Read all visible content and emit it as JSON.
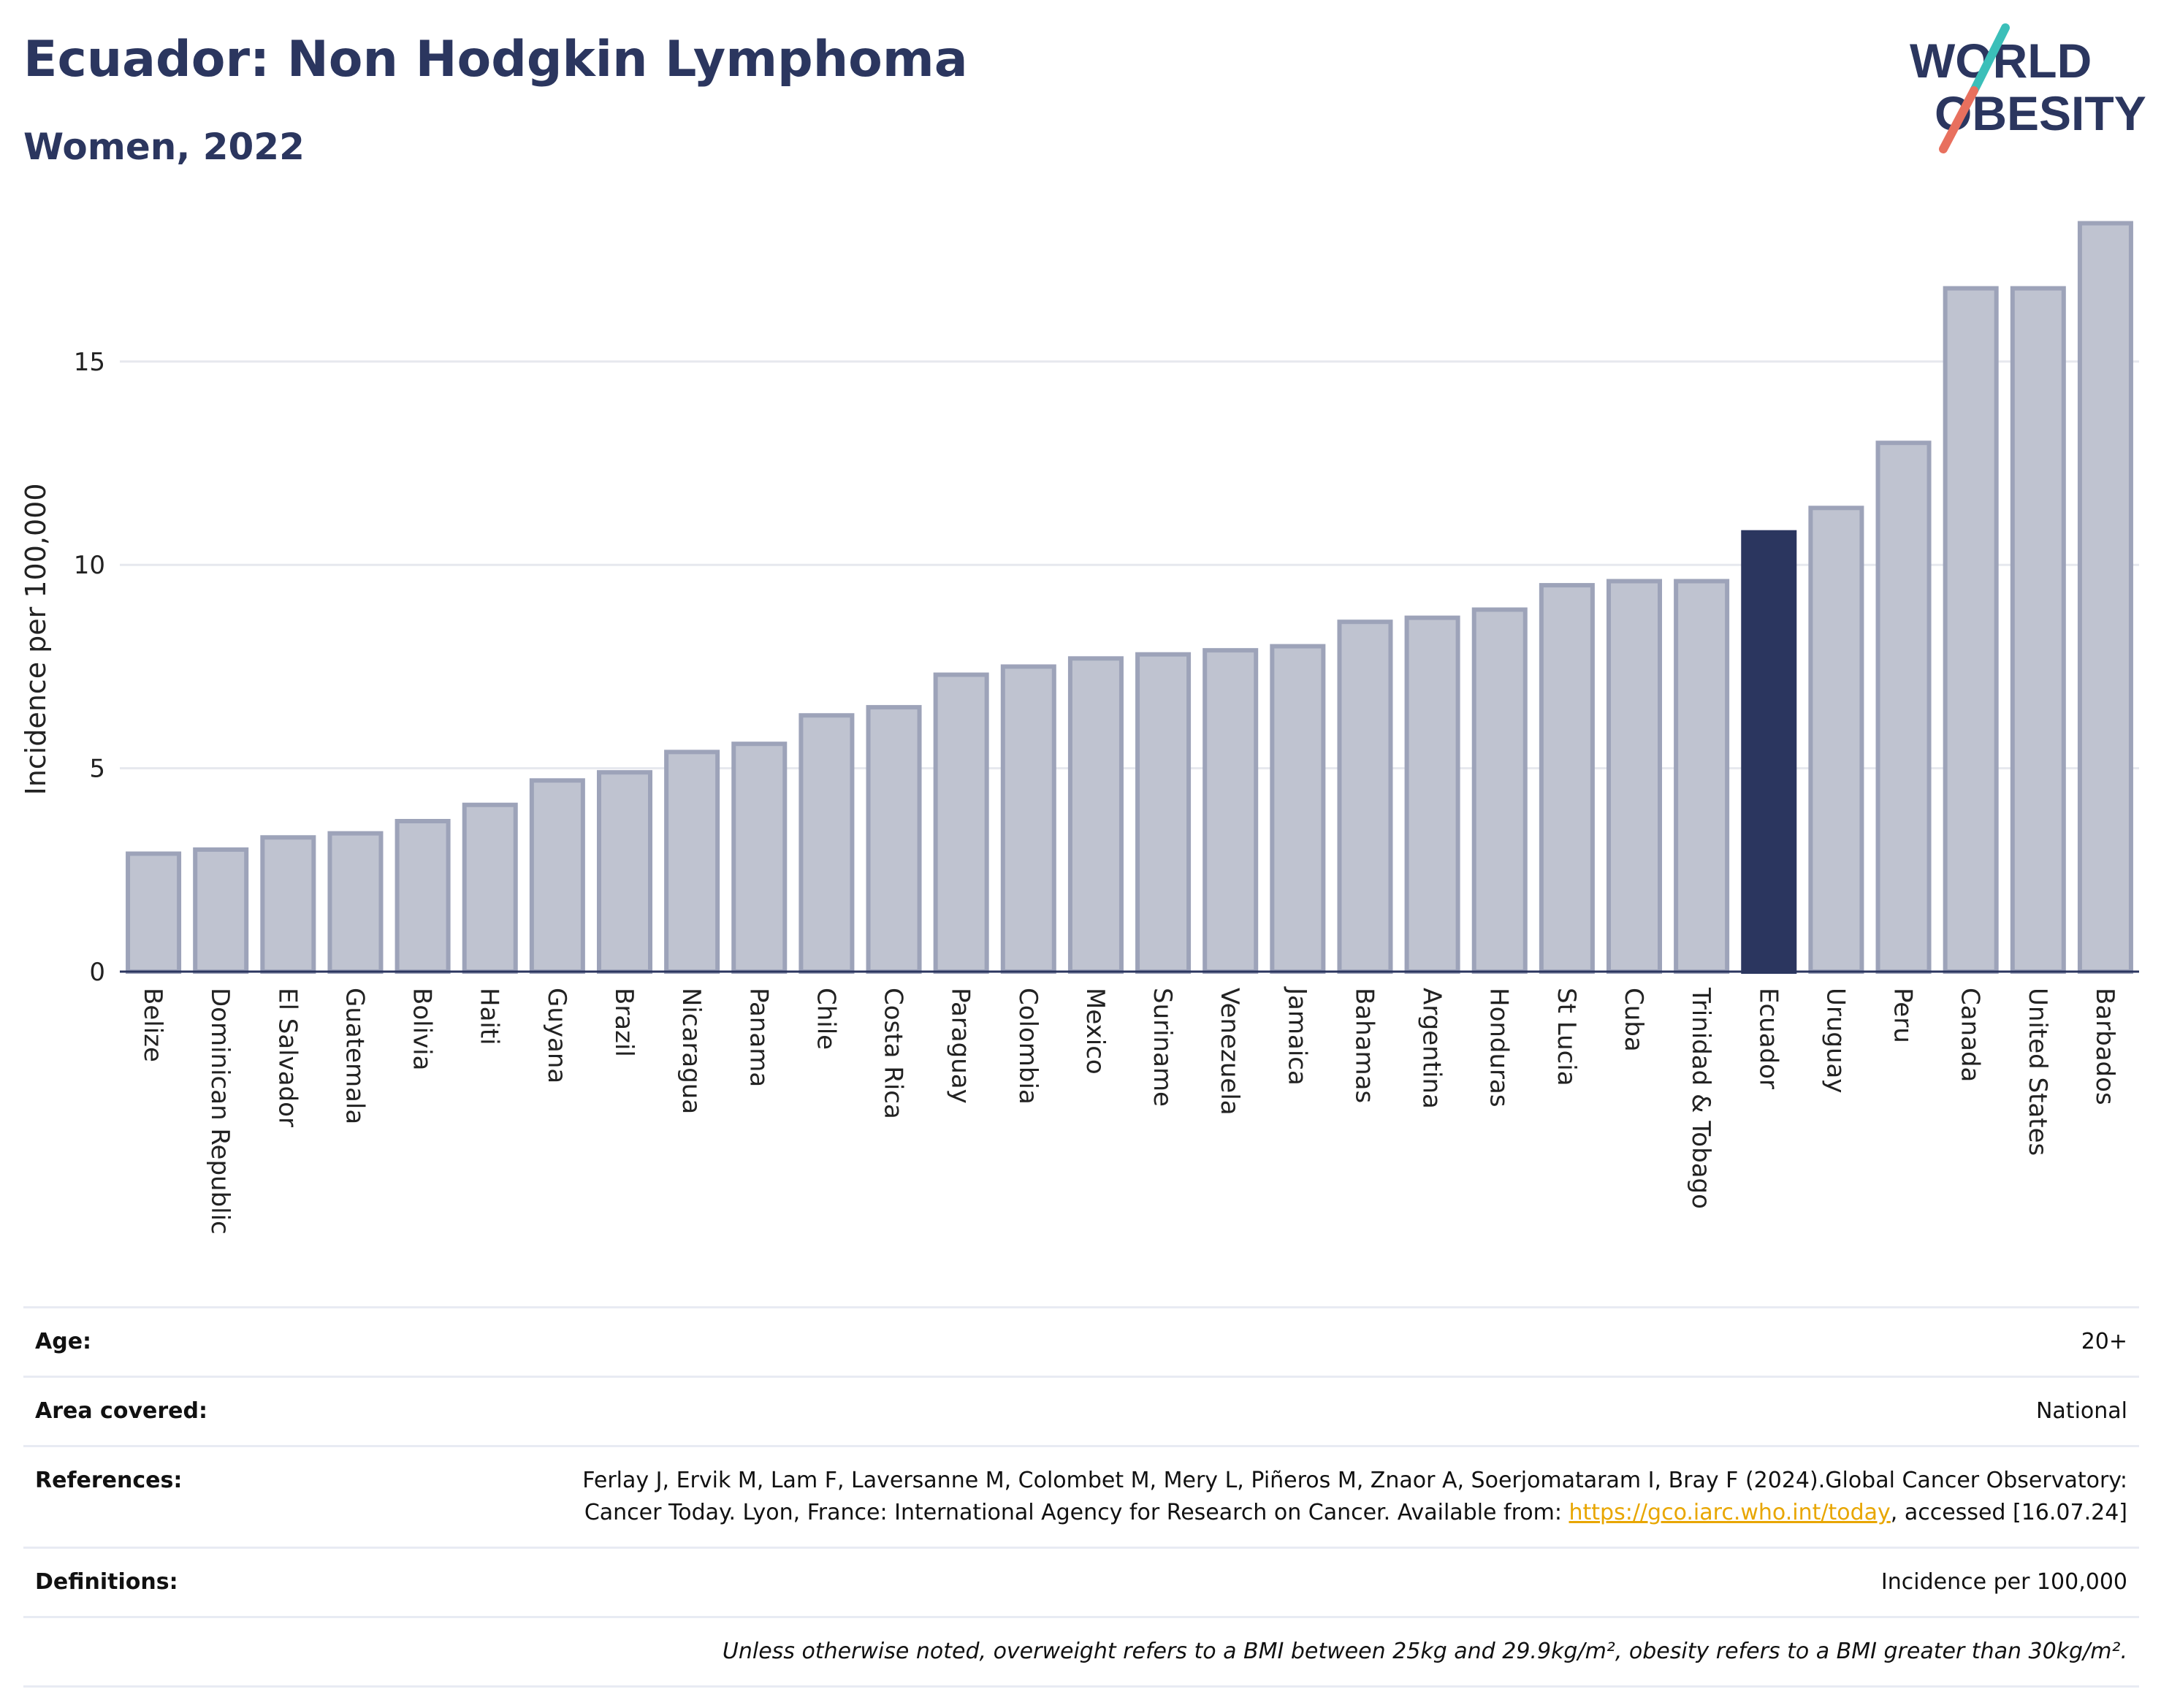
{
  "header": {
    "title": "Ecuador: Non Hodgkin Lymphoma",
    "subtitle": "Women, 2022"
  },
  "logo": {
    "line1": "WORLD",
    "line2": "OBESITY",
    "colors": {
      "text": "#2b365f",
      "slash_top": "#3bbfb9",
      "slash_bottom": "#e8705e"
    }
  },
  "colors": {
    "bar": "#bfc3d0",
    "bar_stroke": "#9da3b9",
    "highlight": "#2b365f",
    "grid": "#e6e8ee",
    "axis": "#2b365f"
  },
  "chart_data": {
    "type": "bar",
    "ylabel": "Incidence per 100,000",
    "ylim": [
      0,
      18.5
    ],
    "yticks": [
      0,
      5,
      10,
      15
    ],
    "grid": true,
    "highlight": "Ecuador",
    "categories": [
      "Belize",
      "Dominican Republic",
      "El Salvador",
      "Guatemala",
      "Bolivia",
      "Haiti",
      "Guyana",
      "Brazil",
      "Nicaragua",
      "Panama",
      "Chile",
      "Costa Rica",
      "Paraguay",
      "Colombia",
      "Mexico",
      "Suriname",
      "Venezuela",
      "Jamaica",
      "Bahamas",
      "Argentina",
      "Honduras",
      "St Lucia",
      "Cuba",
      "Trinidad & Tobago",
      "Ecuador",
      "Uruguay",
      "Peru",
      "Canada",
      "United States",
      "Barbados"
    ],
    "values": [
      2.9,
      3.0,
      3.3,
      3.4,
      3.7,
      4.1,
      4.7,
      4.9,
      5.4,
      5.6,
      6.3,
      6.5,
      7.3,
      7.5,
      7.7,
      7.8,
      7.9,
      8.0,
      8.6,
      8.7,
      8.9,
      9.5,
      9.6,
      9.6,
      10.8,
      11.4,
      13.0,
      16.8,
      16.8,
      18.4
    ]
  },
  "meta": {
    "age_label": "Age:",
    "age_value": "20+",
    "area_label": "Area covered:",
    "area_value": "National",
    "references_label": "References:",
    "references_text_1": "Ferlay J, Ervik M, Lam F, Laversanne M, Colombet M, Mery L, Piñeros M, Znaor A, Soerjomataram I, Bray F (2024).Global Cancer Observatory: Cancer Today. Lyon, France: International Agency for Research on Cancer. Available from: ",
    "references_link": "https://gco.iarc.who.int/today",
    "references_text_2": ", accessed [16.07.24]",
    "definitions_label": "Definitions:",
    "definitions_value": "Incidence per 100,000",
    "note": "Unless otherwise noted, overweight refers to a BMI between 25kg and 29.9kg/m², obesity refers to a BMI greater than 30kg/m²."
  }
}
